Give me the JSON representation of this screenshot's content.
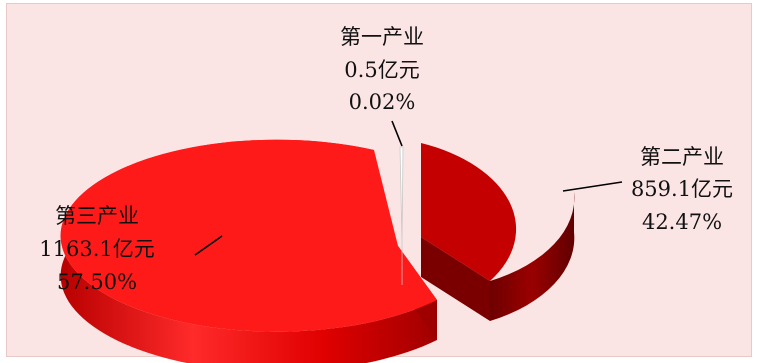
{
  "chart_data": {
    "type": "pie",
    "title": "",
    "unit": "亿元",
    "slices": [
      {
        "name": "第一产业",
        "value": 0.5,
        "value_label": "0.5亿元",
        "percent": 0.02,
        "percent_label": "0.02%",
        "color": "#ffffff"
      },
      {
        "name": "第二产业",
        "value": 859.1,
        "value_label": "859.1亿元",
        "percent": 42.47,
        "percent_label": "42.47%",
        "color": "#c00000"
      },
      {
        "name": "第三产业",
        "value": 1163.1,
        "value_label": "1163.1亿元",
        "percent": 57.5,
        "percent_label": "57.50%",
        "color": "#ff1a1a"
      }
    ],
    "style": "3d-exploded",
    "background": "#fbe4e4"
  }
}
